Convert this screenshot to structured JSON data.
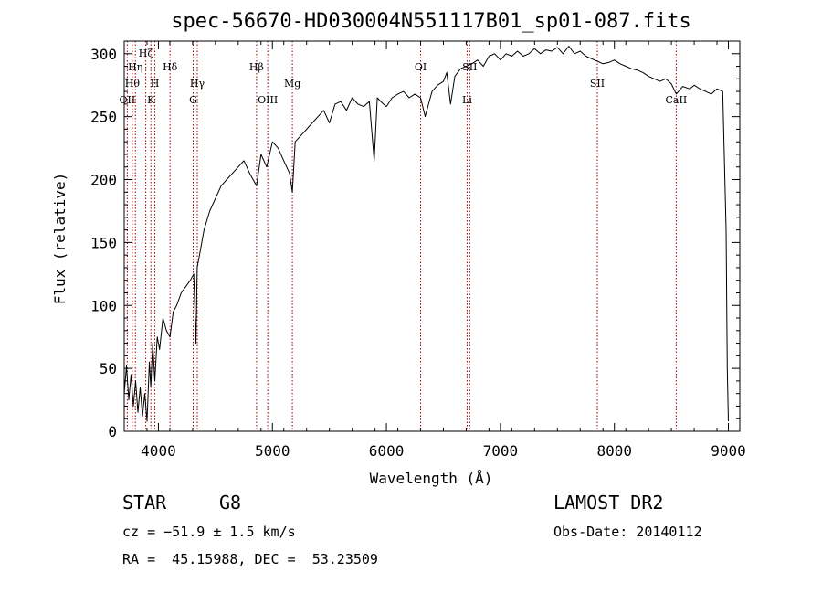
{
  "chart_data": {
    "type": "line",
    "title": "spec-56670-HD030004N551117B01_sp01-087.fits",
    "xlabel": "Wavelength (Å)",
    "ylabel": "Flux (relative)",
    "xlim": [
      3700,
      9100
    ],
    "ylim": [
      0,
      310
    ],
    "xticks": [
      4000,
      5000,
      6000,
      7000,
      8000,
      9000
    ],
    "yticks": [
      0,
      50,
      100,
      150,
      200,
      250,
      300
    ],
    "grid": false,
    "series": [
      {
        "color": "#000000",
        "x": [
          3700,
          3720,
          3740,
          3760,
          3780,
          3800,
          3820,
          3840,
          3860,
          3880,
          3900,
          3920,
          3933,
          3950,
          3968,
          3990,
          4010,
          4040,
          4070,
          4101,
          4130,
          4160,
          4200,
          4240,
          4280,
          4310,
          4330,
          4340,
          4360,
          4400,
          4450,
          4500,
          4550,
          4600,
          4650,
          4700,
          4750,
          4800,
          4861,
          4900,
          4950,
          5000,
          5050,
          5100,
          5150,
          5175,
          5200,
          5250,
          5300,
          5350,
          5400,
          5450,
          5500,
          5550,
          5600,
          5650,
          5700,
          5750,
          5800,
          5850,
          5893,
          5920,
          5950,
          6000,
          6050,
          6100,
          6150,
          6200,
          6250,
          6300,
          6340,
          6400,
          6450,
          6500,
          6530,
          6563,
          6600,
          6650,
          6700,
          6750,
          6800,
          6850,
          6900,
          6950,
          7000,
          7050,
          7100,
          7150,
          7200,
          7250,
          7300,
          7350,
          7400,
          7450,
          7500,
          7550,
          7600,
          7650,
          7700,
          7750,
          7800,
          7850,
          7900,
          7950,
          8000,
          8050,
          8100,
          8150,
          8200,
          8250,
          8300,
          8350,
          8400,
          8450,
          8500,
          8542,
          8600,
          8662,
          8700,
          8750,
          8800,
          8850,
          8900,
          8950,
          8980,
          8990,
          9000
        ],
        "y": [
          30,
          52,
          25,
          45,
          20,
          40,
          15,
          35,
          12,
          30,
          8,
          55,
          35,
          70,
          40,
          75,
          65,
          90,
          80,
          75,
          95,
          100,
          110,
          115,
          120,
          125,
          70,
          130,
          140,
          160,
          175,
          185,
          195,
          200,
          205,
          210,
          215,
          205,
          195,
          220,
          210,
          230,
          225,
          215,
          205,
          190,
          230,
          235,
          240,
          245,
          250,
          255,
          245,
          260,
          262,
          255,
          265,
          260,
          258,
          262,
          215,
          265,
          262,
          258,
          265,
          268,
          270,
          265,
          268,
          265,
          250,
          270,
          275,
          278,
          285,
          260,
          282,
          288,
          290,
          292,
          295,
          290,
          298,
          300,
          295,
          300,
          298,
          302,
          298,
          300,
          304,
          300,
          303,
          302,
          305,
          300,
          306,
          300,
          302,
          298,
          296,
          294,
          292,
          293,
          295,
          292,
          290,
          288,
          287,
          285,
          282,
          280,
          278,
          280,
          276,
          268,
          274,
          272,
          275,
          272,
          270,
          268,
          272,
          270,
          160,
          50,
          8
        ]
      }
    ],
    "line_markers": [
      {
        "x": 3727,
        "label": "OII",
        "row": 3
      },
      {
        "x": 3771,
        "label": "Hθ",
        "row": 2
      },
      {
        "x": 3798,
        "label": "Hη",
        "row": 1
      },
      {
        "x": 3889,
        "label": "Hζ",
        "row": 0
      },
      {
        "x": 3934,
        "label": "K",
        "row": 3
      },
      {
        "x": 3969,
        "label": "H",
        "row": 2
      },
      {
        "x": 4102,
        "label": "Hδ",
        "row": 1
      },
      {
        "x": 4305,
        "label": "G",
        "row": 3
      },
      {
        "x": 4341,
        "label": "Hγ",
        "row": 2
      },
      {
        "x": 4861,
        "label": "Hβ",
        "row": 1
      },
      {
        "x": 4959,
        "label": "OIII",
        "row": 3
      },
      {
        "x": 5175,
        "label": "Mg",
        "row": 2
      },
      {
        "x": 6300,
        "label": "OI",
        "row": 1
      },
      {
        "x": 6708,
        "label": "Li",
        "row": 3
      },
      {
        "x": 6731,
        "label": "SII",
        "row": 1
      },
      {
        "x": 7850,
        "label": "SII",
        "row": 2
      },
      {
        "x": 8542,
        "label": "CaII",
        "row": 3
      }
    ]
  },
  "info": {
    "class": "STAR",
    "subclass": "G8",
    "survey": "LAMOST DR2",
    "cz": "cz = −51.9 ± 1.5 km/s",
    "obs_date": "Obs-Date: 20140112",
    "radec": "RA =  45.15988, DEC =  53.23509"
  }
}
